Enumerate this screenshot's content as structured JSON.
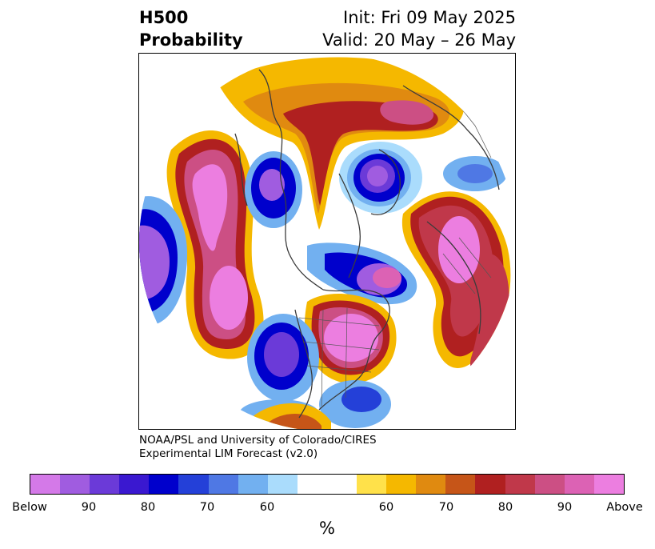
{
  "title": {
    "left_line1": "H500",
    "left_line2": "Probability",
    "right_line1": "Init: Fri 09 May 2025",
    "right_line2": "Valid: 20 May – 26 May"
  },
  "credit": {
    "line1": "NOAA/PSL and University of Colorado/CIRES",
    "line2": "Experimental LIM Forecast (v2.0)"
  },
  "colorbar": {
    "unit": "%",
    "colors": [
      "#d479e8",
      "#a05ce0",
      "#6b3ad8",
      "#3a18d0",
      "#0000cc",
      "#2440d8",
      "#4f78e4",
      "#72b0f0",
      "#aadcfc",
      "#ffffff",
      "#ffffff",
      "#ffe14a",
      "#f5b800",
      "#e08a10",
      "#c65518",
      "#b02020",
      "#c0384a",
      "#cc4f84",
      "#dc62b4",
      "#ec7ee0"
    ],
    "ticks": [
      {
        "label": "Below"
      },
      {
        "label": "90"
      },
      {
        "label": "80"
      },
      {
        "label": "70"
      },
      {
        "label": "60"
      },
      {
        "label": "60"
      },
      {
        "label": "70"
      },
      {
        "label": "80"
      },
      {
        "label": "90"
      },
      {
        "label": "Above"
      }
    ]
  }
}
